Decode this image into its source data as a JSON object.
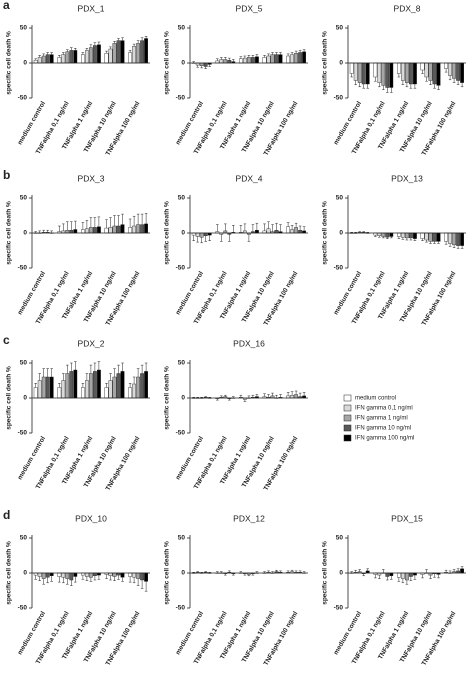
{
  "panels": [
    "a",
    "b",
    "c",
    "d"
  ],
  "legend": [
    {
      "name": "medium control",
      "color": "#ffffff"
    },
    {
      "name": "IFN gamma 0,1 ng/ml",
      "color": "#d9d9d9"
    },
    {
      "name": "IFN gamma 1 ng/ml",
      "color": "#a6a6a6"
    },
    {
      "name": "IFN gamma 10 ng/ml",
      "color": "#595959"
    },
    {
      "name": "IFN gamma 100 ng/ml",
      "color": "#000000"
    }
  ],
  "chart_data": [
    {
      "type": "bar",
      "title": "PDX_1",
      "y_label": "specific cell death %",
      "categories": [
        "medium control",
        "TNFalpha 0,1 ng/ml",
        "TNFalpha 1 ng/ml",
        "TNFalpha 10 ng/ml",
        "TNFalpha 100 ng/ml"
      ],
      "ylim": [
        -50,
        50
      ],
      "yticks": [
        -50,
        0,
        50
      ],
      "series": [
        {
          "values": [
            4,
            8,
            12,
            14,
            15
          ],
          "errors": [
            2,
            3,
            3,
            3,
            3
          ]
        },
        {
          "values": [
            8,
            12,
            18,
            20,
            24
          ],
          "errors": [
            3,
            3,
            3,
            3,
            3
          ]
        },
        {
          "values": [
            10,
            16,
            22,
            28,
            28
          ],
          "errors": [
            3,
            3,
            4,
            3,
            4
          ]
        },
        {
          "values": [
            12,
            18,
            25,
            32,
            32
          ],
          "errors": [
            3,
            4,
            4,
            3,
            4
          ]
        },
        {
          "values": [
            12,
            18,
            26,
            32,
            35
          ],
          "errors": [
            3,
            3,
            4,
            4,
            3
          ]
        }
      ]
    },
    {
      "type": "bar",
      "title": "PDX_5",
      "y_label": "specific cell death %",
      "categories": [
        "medium control",
        "TNFalpha 0,1 ng/ml",
        "TNFalpha 1 ng/ml",
        "TNFalpha 10 ng/ml",
        "TNFalpha 100 ng/ml"
      ],
      "ylim": [
        -50,
        50
      ],
      "yticks": [
        -50,
        0,
        50
      ],
      "series": [
        {
          "values": [
            0,
            3,
            6,
            8,
            10
          ],
          "errors": [
            2,
            3,
            3,
            3,
            3
          ]
        },
        {
          "values": [
            -3,
            5,
            7,
            10,
            12
          ],
          "errors": [
            3,
            3,
            3,
            3,
            3
          ]
        },
        {
          "values": [
            -4,
            5,
            8,
            12,
            14
          ],
          "errors": [
            3,
            3,
            3,
            3,
            3
          ]
        },
        {
          "values": [
            -5,
            4,
            8,
            12,
            15
          ],
          "errors": [
            3,
            3,
            3,
            3,
            3
          ]
        },
        {
          "values": [
            -2,
            2,
            9,
            12,
            16
          ],
          "errors": [
            3,
            3,
            3,
            3,
            3
          ]
        }
      ]
    },
    {
      "type": "bar",
      "title": "PDX_8",
      "y_label": "specific cell death %",
      "categories": [
        "medium control",
        "TNFalpha 0,1 ng/ml",
        "TNFalpha 1 ng/ml",
        "TNFalpha 10 ng/ml",
        "TNFalpha 100 ng/ml"
      ],
      "ylim": [
        -50,
        50
      ],
      "yticks": [
        -50,
        0,
        50
      ],
      "series": [
        {
          "values": [
            -15,
            -20,
            -15,
            -10,
            -8
          ],
          "errors": [
            5,
            6,
            5,
            5,
            5
          ]
        },
        {
          "values": [
            -25,
            -28,
            -25,
            -20,
            -18
          ],
          "errors": [
            6,
            6,
            6,
            6,
            6
          ]
        },
        {
          "values": [
            -28,
            -32,
            -28,
            -25,
            -22
          ],
          "errors": [
            6,
            6,
            6,
            6,
            6
          ]
        },
        {
          "values": [
            -30,
            -35,
            -30,
            -30,
            -25
          ],
          "errors": [
            6,
            7,
            6,
            6,
            6
          ]
        },
        {
          "values": [
            -30,
            -35,
            -30,
            -32,
            -28
          ],
          "errors": [
            6,
            7,
            6,
            6,
            6
          ]
        }
      ]
    },
    {
      "type": "bar",
      "title": "PDX_3",
      "y_label": "specific cell death %",
      "categories": [
        "medium control",
        "TNFalpha 0,1 ng/ml",
        "TNFalpha 1 ng/ml",
        "TNFalpha 10 ng/ml",
        "TNFalpha 100 ng/ml"
      ],
      "ylim": [
        -50,
        50
      ],
      "yticks": [
        -50,
        0,
        50
      ],
      "series": [
        {
          "values": [
            0,
            2,
            5,
            7,
            8
          ],
          "errors": [
            2,
            8,
            10,
            12,
            12
          ]
        },
        {
          "values": [
            0,
            3,
            6,
            8,
            10
          ],
          "errors": [
            3,
            10,
            12,
            14,
            14
          ]
        },
        {
          "values": [
            1,
            4,
            8,
            10,
            12
          ],
          "errors": [
            3,
            12,
            14,
            15,
            15
          ]
        },
        {
          "values": [
            1,
            4,
            8,
            10,
            12
          ],
          "errors": [
            3,
            12,
            14,
            15,
            15
          ]
        },
        {
          "values": [
            0,
            5,
            9,
            12,
            13
          ],
          "errors": [
            3,
            12,
            14,
            15,
            15
          ]
        }
      ]
    },
    {
      "type": "bar",
      "title": "PDX_4",
      "y_label": "specific cell death %",
      "categories": [
        "medium control",
        "TNFalpha 0,1 ng/ml",
        "TNFalpha 1 ng/ml",
        "TNFalpha 10 ng/ml",
        "TNFalpha 100 ng/ml"
      ],
      "ylim": [
        -50,
        50
      ],
      "yticks": [
        -50,
        0,
        50
      ],
      "series": [
        {
          "values": [
            -3,
            2,
            1,
            3,
            9
          ],
          "errors": [
            8,
            10,
            10,
            10,
            6
          ]
        },
        {
          "values": [
            -5,
            -2,
            3,
            6,
            5
          ],
          "errors": [
            8,
            10,
            10,
            10,
            6
          ]
        },
        {
          "values": [
            -6,
            3,
            -2,
            2,
            8
          ],
          "errors": [
            8,
            10,
            10,
            10,
            6
          ]
        },
        {
          "values": [
            -4,
            -2,
            2,
            4,
            4
          ],
          "errors": [
            8,
            10,
            10,
            10,
            6
          ]
        },
        {
          "values": [
            -3,
            1,
            4,
            2,
            3
          ],
          "errors": [
            8,
            10,
            10,
            10,
            6
          ]
        }
      ]
    },
    {
      "type": "bar",
      "title": "PDX_13",
      "y_label": "specific cell death %",
      "categories": [
        "medium control",
        "TNFalpha 0,1 ng/ml",
        "TNFalpha 1 ng/ml",
        "TNFalpha 10 ng/ml",
        "TNFalpha 100 ng/ml"
      ],
      "ylim": [
        -50,
        50
      ],
      "yticks": [
        -50,
        0,
        50
      ],
      "series": [
        {
          "values": [
            0,
            -3,
            -5,
            -8,
            -12
          ],
          "errors": [
            1,
            2,
            3,
            3,
            4
          ]
        },
        {
          "values": [
            0,
            -4,
            -6,
            -10,
            -15
          ],
          "errors": [
            1,
            2,
            3,
            3,
            4
          ]
        },
        {
          "values": [
            1,
            -5,
            -7,
            -12,
            -17
          ],
          "errors": [
            1,
            2,
            3,
            3,
            4
          ]
        },
        {
          "values": [
            1,
            -6,
            -7,
            -12,
            -18
          ],
          "errors": [
            1,
            2,
            3,
            3,
            4
          ]
        },
        {
          "values": [
            0,
            -5,
            -8,
            -12,
            -18
          ],
          "errors": [
            1,
            2,
            3,
            3,
            4
          ]
        }
      ]
    },
    {
      "type": "bar",
      "title": "PDX_2",
      "y_label": "specific cell death %",
      "categories": [
        "medium control",
        "TNFalpha 0,1 ng/ml",
        "TNFalpha 1 ng/ml",
        "TNFalpha 10 ng/ml",
        "TNFalpha 100 ng/ml"
      ],
      "ylim": [
        -50,
        50
      ],
      "yticks": [
        -50,
        0,
        50
      ],
      "series": [
        {
          "values": [
            15,
            15,
            15,
            15,
            15
          ],
          "errors": [
            6,
            6,
            6,
            6,
            6
          ]
        },
        {
          "values": [
            25,
            25,
            25,
            25,
            20
          ],
          "errors": [
            10,
            10,
            10,
            10,
            10
          ]
        },
        {
          "values": [
            30,
            35,
            35,
            30,
            30
          ],
          "errors": [
            12,
            12,
            12,
            12,
            12
          ]
        },
        {
          "values": [
            30,
            38,
            38,
            35,
            35
          ],
          "errors": [
            12,
            12,
            12,
            12,
            12
          ]
        },
        {
          "values": [
            30,
            40,
            40,
            38,
            38
          ],
          "errors": [
            12,
            12,
            12,
            12,
            12
          ]
        }
      ]
    },
    {
      "type": "bar",
      "title": "PDX_16",
      "y_label": "specific cell death %",
      "categories": [
        "medium control",
        "TNFalpha 0,1 ng/ml",
        "TNFalpha 1 ng/ml",
        "TNFalpha 10 ng/ml",
        "TNFalpha 100 ng/ml"
      ],
      "ylim": [
        -50,
        50
      ],
      "yticks": [
        -50,
        0,
        50
      ],
      "series": [
        {
          "values": [
            0,
            -1,
            1,
            2,
            3
          ],
          "errors": [
            1,
            2,
            3,
            4,
            5
          ]
        },
        {
          "values": [
            0,
            1,
            -2,
            1,
            4
          ],
          "errors": [
            1,
            2,
            3,
            4,
            5
          ]
        },
        {
          "values": [
            0,
            2,
            0,
            3,
            5
          ],
          "errors": [
            1,
            2,
            3,
            4,
            5
          ]
        },
        {
          "values": [
            1,
            -1,
            1,
            0,
            2
          ],
          "errors": [
            1,
            2,
            3,
            4,
            5
          ]
        },
        {
          "values": [
            0,
            0,
            2,
            1,
            3
          ],
          "errors": [
            1,
            2,
            3,
            4,
            5
          ]
        }
      ]
    },
    {
      "type": "bar",
      "title": "PDX_10",
      "y_label": "specific cell death %",
      "categories": [
        "medium control",
        "TNFalpha 0,1 ng/ml",
        "TNFalpha 1 ng/ml",
        "TNFalpha 10 ng/ml",
        "TNFalpha 100 ng/ml"
      ],
      "ylim": [
        -50,
        50
      ],
      "yticks": [
        -50,
        0,
        50
      ],
      "series": [
        {
          "values": [
            -3,
            -5,
            -3,
            -2,
            -5
          ],
          "errors": [
            6,
            8,
            6,
            6,
            8
          ]
        },
        {
          "values": [
            -5,
            -6,
            -5,
            -4,
            -6
          ],
          "errors": [
            6,
            8,
            6,
            6,
            8
          ]
        },
        {
          "values": [
            -8,
            -8,
            -6,
            -5,
            -8
          ],
          "errors": [
            8,
            8,
            6,
            6,
            10
          ]
        },
        {
          "values": [
            -6,
            -10,
            -4,
            -3,
            -10
          ],
          "errors": [
            8,
            8,
            6,
            6,
            12
          ]
        },
        {
          "values": [
            -4,
            -5,
            -3,
            -6,
            -12
          ],
          "errors": [
            8,
            8,
            6,
            6,
            14
          ]
        }
      ]
    },
    {
      "type": "bar",
      "title": "PDX_12",
      "y_label": "specific cell death %",
      "categories": [
        "medium control",
        "TNFalpha 0,1 ng/ml",
        "TNFalpha 1 ng/ml",
        "TNFalpha 10 ng/ml",
        "TNFalpha 100 ng/ml"
      ],
      "ylim": [
        -50,
        50
      ],
      "yticks": [
        -50,
        0,
        50
      ],
      "series": [
        {
          "values": [
            0,
            0,
            0,
            0,
            1
          ],
          "errors": [
            1,
            2,
            2,
            2,
            2
          ]
        },
        {
          "values": [
            1,
            0,
            -1,
            1,
            2
          ],
          "errors": [
            1,
            2,
            2,
            2,
            2
          ]
        },
        {
          "values": [
            0,
            -1,
            -2,
            0,
            1
          ],
          "errors": [
            1,
            2,
            2,
            2,
            2
          ]
        },
        {
          "values": [
            1,
            1,
            -1,
            2,
            1
          ],
          "errors": [
            1,
            2,
            2,
            2,
            2
          ]
        },
        {
          "values": [
            0,
            -1,
            0,
            1,
            0
          ],
          "errors": [
            1,
            2,
            2,
            2,
            2
          ]
        }
      ]
    },
    {
      "type": "bar",
      "title": "PDX_15",
      "y_label": "specific cell death %",
      "categories": [
        "medium control",
        "TNFalpha 0,1 ng/ml",
        "TNFalpha 1 ng/ml",
        "TNFalpha 10 ng/ml",
        "TNFalpha 100 ng/ml"
      ],
      "ylim": [
        -50,
        50
      ],
      "yticks": [
        -50,
        0,
        50
      ],
      "series": [
        {
          "values": [
            0,
            -2,
            -6,
            -2,
            1
          ],
          "errors": [
            2,
            5,
            6,
            5,
            3
          ]
        },
        {
          "values": [
            1,
            -3,
            -8,
            0,
            0
          ],
          "errors": [
            3,
            5,
            6,
            5,
            3
          ]
        },
        {
          "values": [
            2,
            0,
            -10,
            -3,
            2
          ],
          "errors": [
            3,
            5,
            6,
            5,
            3
          ]
        },
        {
          "values": [
            -1,
            -5,
            -5,
            -1,
            3
          ],
          "errors": [
            3,
            5,
            6,
            5,
            3
          ]
        },
        {
          "values": [
            3,
            -4,
            -3,
            -2,
            6
          ],
          "errors": [
            3,
            5,
            6,
            5,
            3
          ]
        }
      ]
    }
  ]
}
